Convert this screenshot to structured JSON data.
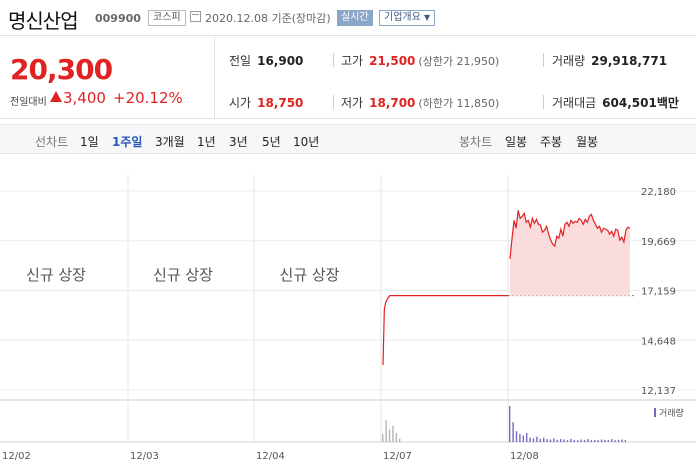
{
  "header": {
    "name": "명신산업",
    "code": "009900",
    "market": "코스피",
    "date": "2020.12.08 기준(장마감)",
    "realtime": "실시간",
    "overview": "기업개요"
  },
  "quote": {
    "price": "20,300",
    "change_label": "전일대비",
    "change": "3,400",
    "change_pct": "+20.12%",
    "prev_close_label": "전일",
    "prev_close": "16,900",
    "high_label": "고가",
    "high": "21,500",
    "upper_limit": "(상한가 21,950)",
    "volume_label": "거래량",
    "volume": "29,918,771",
    "open_label": "시가",
    "open": "18,750",
    "low_label": "저가",
    "low": "18,700",
    "lower_limit": "(하한가 11,850)",
    "amount_label": "거래대금",
    "amount": "604,501",
    "amount_unit": "백만"
  },
  "period_bar": {
    "line_label": "선차트",
    "line_periods": [
      "1일",
      "1주일",
      "3개월",
      "1년",
      "3년",
      "5년",
      "10년"
    ],
    "selected": "1주일",
    "candle_label": "봉차트",
    "candle_periods": [
      "일봉",
      "주봉",
      "월봉"
    ]
  },
  "colors": {
    "up": "#e12222",
    "selected": "#2b56b8",
    "volume": "#7a66c4"
  },
  "chart_data": {
    "type": "area",
    "x_labels": [
      "12/02",
      "12/03",
      "12/04",
      "12/07",
      "12/08"
    ],
    "y_ticks": [
      "22,180",
      "19,669",
      "17,159",
      "14,648",
      "12,137"
    ],
    "ylim": [
      12137,
      22180
    ],
    "reference_price": 16900,
    "new_listing_text": "신규 상장",
    "volume_legend": "거래량",
    "series": [
      {
        "day": "12/07",
        "prices": [
          13400,
          16200,
          16550,
          16700,
          16800,
          16900,
          16900,
          16900,
          16900,
          16900,
          16900,
          16900
        ]
      },
      {
        "day": "12/08",
        "prices": [
          18750,
          19800,
          20700,
          20300,
          21200,
          20800,
          20900,
          21050,
          20600,
          20700,
          20350,
          20800,
          20550,
          20750,
          20500,
          20450,
          20100,
          20200,
          20400,
          20000,
          19700,
          19500,
          19400,
          19900,
          19800,
          20250,
          19900,
          20500,
          20600,
          20400,
          20700,
          20550,
          20650,
          20600,
          20800,
          20700,
          20500,
          20750,
          20600,
          20900,
          21000,
          20700,
          20500,
          20300,
          20400,
          20100,
          20300,
          20250,
          20200,
          20000,
          20150,
          19900,
          20250,
          20200,
          19700,
          19850,
          19600,
          20200,
          20350,
          20300
        ]
      }
    ],
    "volume_bars": {
      "12/07": [
        0.22,
        0.6,
        0.35,
        0.45,
        0.25,
        0.1
      ],
      "12/08": [
        1.0,
        0.55,
        0.3,
        0.22,
        0.18,
        0.25,
        0.12,
        0.1,
        0.15,
        0.09,
        0.12,
        0.08,
        0.07,
        0.1,
        0.06,
        0.08,
        0.07,
        0.05,
        0.09,
        0.06,
        0.05,
        0.07,
        0.06,
        0.08,
        0.05,
        0.06,
        0.05,
        0.07,
        0.06,
        0.05,
        0.08,
        0.05,
        0.06,
        0.07,
        0.05
      ]
    }
  }
}
